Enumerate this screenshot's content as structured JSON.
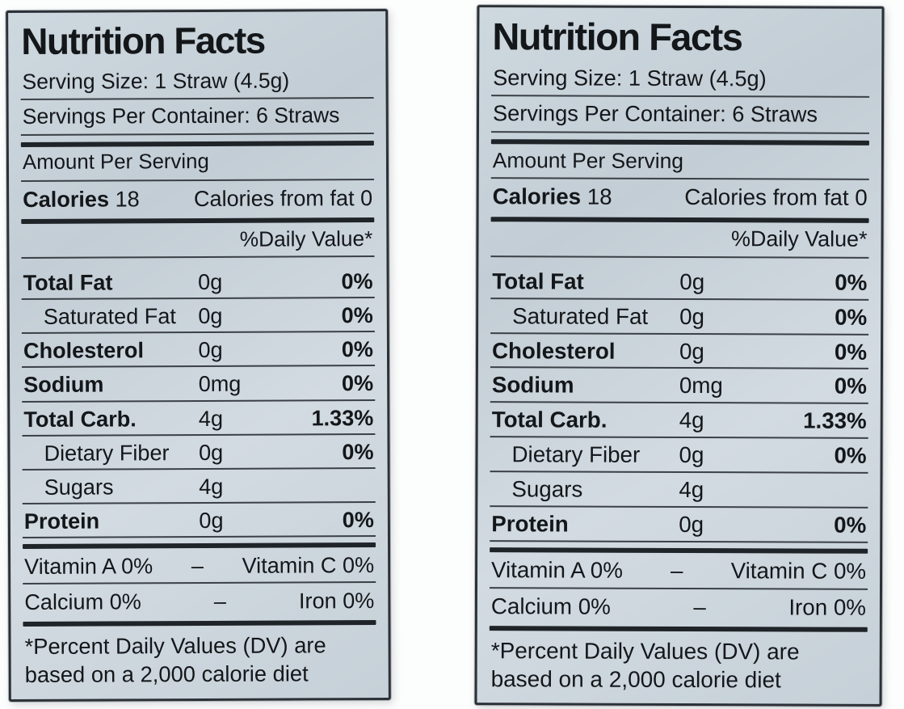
{
  "photo": {
    "background_color": "#fcfdfd"
  },
  "label": {
    "title": "Nutrition Facts",
    "serving_size": "Serving Size: 1 Straw (4.5g)",
    "servings_per_container": "Servings Per Container: 6 Straws",
    "amount_per_serving": "Amount Per Serving",
    "calories": {
      "label": "Calories",
      "value": "18",
      "from_fat": "Calories from fat 0"
    },
    "daily_value_header": "%Daily Value*",
    "rows": [
      {
        "name": "Total Fat",
        "amount": "0g",
        "dv": "0%"
      },
      {
        "name": "Saturated Fat",
        "amount": "0g",
        "dv": "0%"
      },
      {
        "name": "Cholesterol",
        "amount": "0g",
        "dv": "0%"
      },
      {
        "name": "Sodium",
        "amount": "0mg",
        "dv": "0%"
      },
      {
        "name": "Total Carb.",
        "amount": "4g",
        "dv": "1.33%"
      },
      {
        "name": "Dietary Fiber",
        "amount": "0g",
        "dv": "0%"
      },
      {
        "name": "Sugars",
        "amount": "4g",
        "dv": ""
      },
      {
        "name": "Protein",
        "amount": "0g",
        "dv": "0%"
      }
    ],
    "micronutrients": [
      {
        "left": "Vitamin A 0%",
        "separator": "–",
        "right": "Vitamin C 0%"
      },
      {
        "left": "Calcium 0%",
        "separator": "–",
        "right": "Iron 0%"
      }
    ],
    "footnote_line1": "*Percent Daily Values (DV) are",
    "footnote_line2": "based on a 2,000 calorie diet",
    "colors": {
      "label_background": "#c9d3da",
      "text": "#14171a",
      "divider": "#23282d"
    }
  }
}
